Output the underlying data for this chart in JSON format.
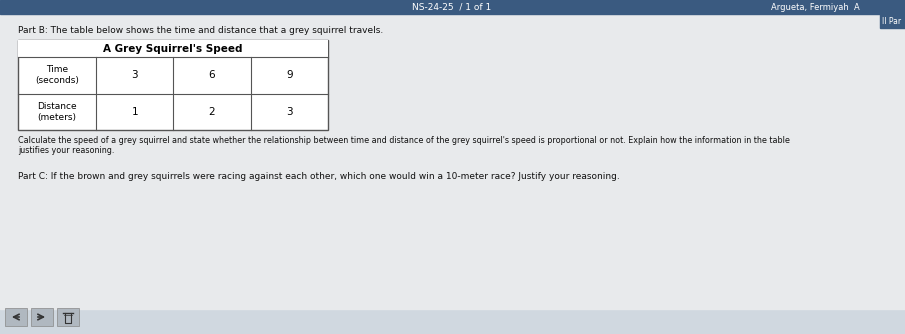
{
  "bg_color": "#d0d8e0",
  "header_bar_color": "#3a5a80",
  "header_text": "NS-24-25  / 1 of 1",
  "header_right_text": "Argueta, Fermiyah  A",
  "header_right2": "II Par",
  "content_bg": "#e8eaec",
  "part_b_text": "Part B: The table below shows the time and distance that a grey squirrel travels.",
  "table_title": "A Grey Squirrel's Speed",
  "table_row1_label": "Time\n(seconds)",
  "table_row2_label": "Distance\n(meters)",
  "table_col_values_row1": [
    "3",
    "6",
    "9"
  ],
  "table_col_values_row2": [
    "1",
    "2",
    "3"
  ],
  "calc_line1": "Calculate the speed of a grey squirrel and state whether the relationship between time and distance of the grey squirrel's speed is proportional or not. Explain how the information in the table",
  "calc_line2": "justifies your reasoning.",
  "part_c_text": "Part C: If the brown and grey squirrels were racing against each other, which one would win a 10-meter race? Justify your reasoning.",
  "bottom_bar_color": "#3a5a80",
  "fig_width": 9.05,
  "fig_height": 3.34,
  "dpi": 100
}
